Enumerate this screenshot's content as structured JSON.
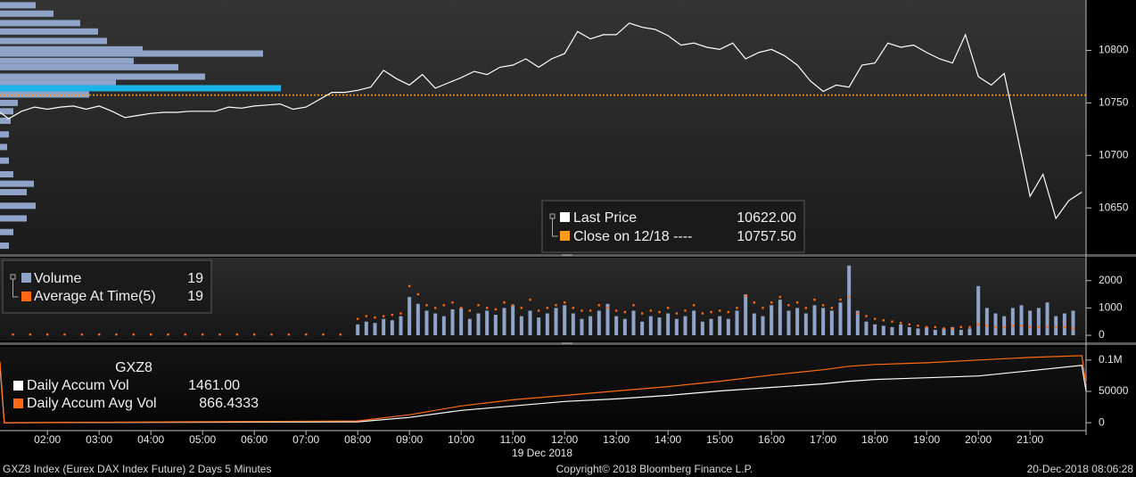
{
  "chart_data": [
    {
      "type": "line",
      "panel": "price",
      "x": [
        "01:05",
        "01:15",
        "01:30",
        "01:45",
        "02:00",
        "02:15",
        "02:30",
        "02:45",
        "03:00",
        "03:15",
        "03:30",
        "03:45",
        "04:00",
        "04:15",
        "04:30",
        "04:45",
        "05:00",
        "05:15",
        "05:30",
        "05:45",
        "06:00",
        "06:15",
        "06:30",
        "06:45",
        "07:00",
        "07:15",
        "07:30",
        "07:45",
        "08:00",
        "08:15",
        "08:30",
        "08:45",
        "09:00",
        "09:15",
        "09:30",
        "09:45",
        "10:00",
        "10:15",
        "10:30",
        "10:45",
        "11:00",
        "11:15",
        "11:30",
        "11:45",
        "12:00",
        "12:15",
        "12:30",
        "12:45",
        "13:00",
        "13:15",
        "13:30",
        "13:45",
        "14:00",
        "14:15",
        "14:30",
        "14:45",
        "15:00",
        "15:15",
        "15:30",
        "15:45",
        "16:00",
        "16:15",
        "16:30",
        "16:45",
        "17:00",
        "17:15",
        "17:30",
        "17:45",
        "18:00",
        "18:15",
        "18:30",
        "18:45",
        "19:00",
        "19:15",
        "19:30",
        "19:45",
        "20:00",
        "20:15",
        "20:30",
        "20:45",
        "21:00",
        "21:15",
        "21:30",
        "21:45",
        "22:00"
      ],
      "ylim": [
        10606,
        10848
      ],
      "yticks": [
        10650,
        10700,
        10750,
        10800
      ],
      "series": [
        {
          "name": "Last Price",
          "color": "#ffffff",
          "last": {
            "value": 10622,
            "label": "10622.00"
          },
          "values": [
            10741,
            10735,
            10742,
            10746,
            10744,
            10746,
            10747,
            10744,
            10747,
            10742,
            10736,
            10738,
            10740,
            10741,
            10741,
            10742,
            10742,
            10742,
            10746,
            10745,
            10747,
            10748,
            10749,
            10744,
            10746,
            10753,
            10760,
            10760,
            10762,
            10765,
            10781,
            10773,
            10767,
            10777,
            10764,
            10769,
            10774,
            10780,
            10777,
            10784,
            10786,
            10792,
            10784,
            10792,
            10797,
            10818,
            10811,
            10815,
            10815,
            10826,
            10822,
            10820,
            10814,
            10805,
            10807,
            10803,
            10801,
            10807,
            10792,
            10798,
            10801,
            10795,
            10786,
            10771,
            10761,
            10767,
            10765,
            10786,
            10788,
            10807,
            10803,
            10805,
            10798,
            10792,
            10788,
            10815,
            10775,
            10767,
            10778,
            10720,
            10661,
            10682,
            10640,
            10657,
            10665
          ]
        }
      ],
      "reference_line": {
        "name": "Close on 12/18 ----",
        "value": 10757.5,
        "label": "10757.50",
        "color": "#ff9a1a"
      },
      "volume_profile": {
        "prices": [
          10843,
          10835,
          10826,
          10818,
          10809,
          10801,
          10797,
          10790,
          10784,
          10775,
          10769,
          10764,
          10758,
          10750,
          10742,
          10733,
          10720,
          10708,
          10695,
          10682,
          10673,
          10665,
          10652,
          10640,
          10627,
          10614
        ],
        "values": [
          80,
          120,
          180,
          220,
          240,
          320,
          590,
          300,
          400,
          460,
          260,
          630,
          200,
          40,
          30,
          24,
          20,
          16,
          20,
          30,
          76,
          60,
          80,
          60,
          30,
          20
        ],
        "xlim": [
          0,
          2548
        ],
        "color": "#8fa4c8",
        "highlight_index": 11,
        "highlight_color": "#19b5e8"
      }
    },
    {
      "type": "bar",
      "panel": "volume",
      "ylim": [
        -194,
        2839
      ],
      "yticks": [
        0,
        1000,
        2000
      ],
      "series": [
        {
          "name": "Volume",
          "color": "#8fa4c8",
          "legend_value": 19,
          "x": [
            "08:00",
            "08:10",
            "08:20",
            "08:30",
            "08:40",
            "08:50",
            "09:00",
            "09:10",
            "09:20",
            "09:30",
            "09:40",
            "09:50",
            "10:00",
            "10:10",
            "10:20",
            "10:30",
            "10:40",
            "10:50",
            "11:00",
            "11:10",
            "11:20",
            "11:30",
            "11:40",
            "11:50",
            "12:00",
            "12:10",
            "12:20",
            "12:30",
            "12:40",
            "12:50",
            "13:00",
            "13:10",
            "13:20",
            "13:30",
            "13:40",
            "13:50",
            "14:00",
            "14:10",
            "14:20",
            "14:30",
            "14:40",
            "14:50",
            "15:00",
            "15:10",
            "15:20",
            "15:30",
            "15:40",
            "15:50",
            "16:00",
            "16:10",
            "16:20",
            "16:30",
            "16:40",
            "16:50",
            "17:00",
            "17:10",
            "17:20",
            "17:30",
            "17:40",
            "17:50",
            "18:00",
            "18:10",
            "18:20",
            "18:30",
            "18:40",
            "18:50",
            "19:00",
            "19:10",
            "19:20",
            "19:30",
            "19:40",
            "19:50",
            "20:00",
            "20:10",
            "20:20",
            "20:30",
            "20:40",
            "20:50",
            "21:00",
            "21:10",
            "21:20",
            "21:30",
            "21:40",
            "21:50"
          ],
          "values": [
            400,
            500,
            450,
            600,
            550,
            700,
            1400,
            1150,
            900,
            800,
            700,
            950,
            1000,
            600,
            800,
            900,
            750,
            1000,
            1100,
            700,
            900,
            650,
            800,
            1000,
            1100,
            800,
            600,
            700,
            900,
            1150,
            700,
            600,
            900,
            500,
            700,
            650,
            800,
            600,
            700,
            900,
            500,
            600,
            700,
            600,
            900,
            1500,
            800,
            700,
            1100,
            1300,
            900,
            1000,
            800,
            1100,
            1000,
            900,
            1200,
            2550,
            900,
            500,
            400,
            350,
            300,
            400,
            300,
            250,
            300,
            200,
            250,
            300,
            200,
            250,
            1800,
            1000,
            800,
            700,
            1000,
            1100,
            900,
            1000,
            1200,
            700,
            800,
            900
          ]
        },
        {
          "name": "Average At Time(5)",
          "color": "#ff6a13",
          "style": "dots",
          "legend_value": 19,
          "x": [
            "01:20",
            "01:40",
            "02:00",
            "02:20",
            "02:40",
            "03:00",
            "03:20",
            "03:40",
            "04:00",
            "04:20",
            "04:40",
            "05:00",
            "05:20",
            "05:40",
            "06:00",
            "06:20",
            "06:40",
            "07:00",
            "07:20",
            "07:40",
            "08:00",
            "08:10",
            "08:20",
            "08:30",
            "08:40",
            "08:50",
            "09:00",
            "09:10",
            "09:20",
            "09:30",
            "09:40",
            "09:50",
            "10:00",
            "10:10",
            "10:20",
            "10:30",
            "10:40",
            "10:50",
            "11:00",
            "11:10",
            "11:20",
            "11:30",
            "11:40",
            "11:50",
            "12:00",
            "12:10",
            "12:20",
            "12:30",
            "12:40",
            "12:50",
            "13:00",
            "13:10",
            "13:20",
            "13:30",
            "13:40",
            "13:50",
            "14:00",
            "14:10",
            "14:20",
            "14:30",
            "14:40",
            "14:50",
            "15:00",
            "15:10",
            "15:20",
            "15:30",
            "15:40",
            "15:50",
            "16:00",
            "16:10",
            "16:20",
            "16:30",
            "16:40",
            "16:50",
            "17:00",
            "17:10",
            "17:20",
            "17:30",
            "17:40",
            "17:50",
            "18:00",
            "18:10",
            "18:20",
            "18:30",
            "18:40",
            "18:50",
            "19:00",
            "19:10",
            "19:20",
            "19:30",
            "19:40",
            "19:50",
            "20:00",
            "20:10",
            "20:20",
            "20:30",
            "20:40",
            "20:50",
            "21:00",
            "21:10",
            "21:20",
            "21:30",
            "21:40",
            "21:50"
          ],
          "values": [
            30,
            30,
            30,
            30,
            30,
            30,
            30,
            30,
            30,
            30,
            30,
            30,
            30,
            30,
            30,
            30,
            30,
            30,
            30,
            30,
            600,
            700,
            650,
            700,
            750,
            800,
            1800,
            1500,
            1100,
            1000,
            1100,
            1200,
            1000,
            900,
            1100,
            1000,
            950,
            1200,
            1100,
            1000,
            1300,
            900,
            1000,
            1100,
            1200,
            1000,
            900,
            900,
            1100,
            1000,
            900,
            850,
            1100,
            800,
            900,
            850,
            1000,
            800,
            900,
            1100,
            800,
            850,
            900,
            850,
            1000,
            1450,
            1200,
            1000,
            1200,
            1400,
            1100,
            1200,
            1000,
            1300,
            1100,
            1000,
            1300,
            1400,
            800,
            700,
            600,
            550,
            500,
            450,
            400,
            350,
            300,
            300,
            250,
            250,
            300,
            300,
            400,
            350,
            300,
            300,
            350,
            350,
            300,
            300,
            300,
            300,
            300,
            250
          ]
        }
      ]
    },
    {
      "type": "line",
      "panel": "accum",
      "title": "GXZ8",
      "x": [
        "01:05",
        "01:10",
        "08:00",
        "09:00",
        "10:00",
        "11:00",
        "12:00",
        "13:00",
        "14:00",
        "15:00",
        "16:00",
        "17:00",
        "17:30",
        "18:00",
        "19:00",
        "20:00",
        "21:00",
        "22:00",
        "22:05"
      ],
      "ylim": [
        -12676,
        121127
      ],
      "yticks": [
        0,
        50000,
        {
          "value": 100000,
          "label": "0.1M"
        }
      ],
      "series": [
        {
          "name": "Daily Accum Vol",
          "color": "#ffffff",
          "legend_value": {
            "value": 1461,
            "label": "1461.00"
          },
          "values": [
            90100,
            0,
            1400,
            8400,
            19700,
            26800,
            33800,
            38000,
            43600,
            50700,
            56300,
            62000,
            66200,
            69000,
            71800,
            74600,
            83000,
            91500,
            50700
          ]
        },
        {
          "name": "Daily Accum Avg Vol",
          "color": "#ff6a13",
          "legend_value": 866.4333,
          "values": [
            97150,
            0,
            2800,
            12700,
            26800,
            36600,
            43600,
            50700,
            57700,
            66200,
            76000,
            84500,
            90100,
            93000,
            95700,
            100000,
            104200,
            107000,
            62000
          ]
        }
      ]
    }
  ],
  "x_axis": {
    "xlim": [
      "01:05",
      "22:05"
    ],
    "ticks": [
      "02:00",
      "03:00",
      "04:00",
      "05:00",
      "06:00",
      "07:00",
      "08:00",
      "09:00",
      "10:00",
      "11:00",
      "12:00",
      "13:00",
      "14:00",
      "15:00",
      "16:00",
      "17:00",
      "18:00",
      "19:00",
      "20:00",
      "21:00"
    ],
    "date_label": "19 Dec 2018"
  },
  "footer": {
    "left": "GXZ8 Index (Eurex DAX Index Future) 2 Days 5 Minutes",
    "center": "Copyright© 2018 Bloomberg Finance L.P.",
    "right": "20-Dec-2018 08:06:28"
  }
}
